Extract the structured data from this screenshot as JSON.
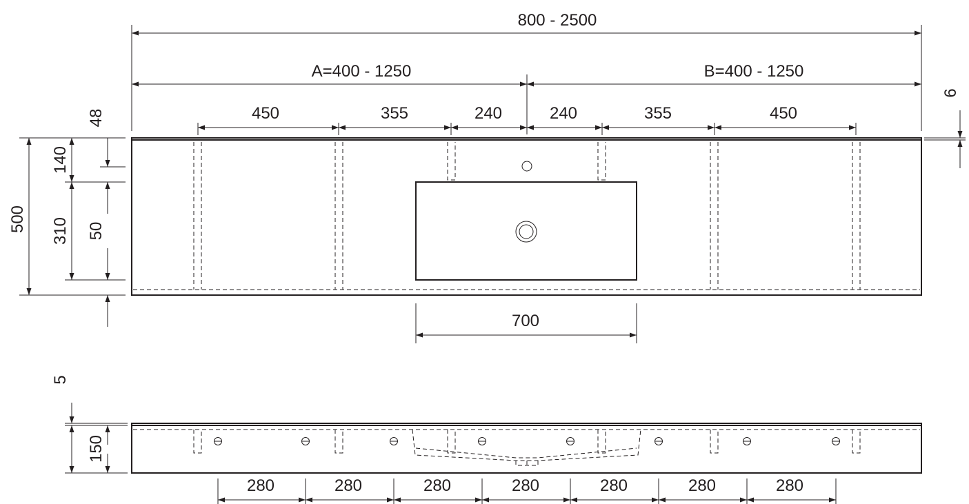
{
  "top_view": {
    "overall_width": "800 - 2500",
    "section_a": "A=400 - 1250",
    "section_b": "B=400 - 1250",
    "spacings": [
      "450",
      "355",
      "240",
      "240",
      "355",
      "450"
    ],
    "basin_width": "700",
    "depth_total": "500",
    "depth_upper": "140",
    "depth_basin": "310",
    "back_offset": "48",
    "front_offset": "50",
    "rim_thickness": "6"
  },
  "front_view": {
    "top_thickness": "5",
    "height": "150",
    "hole_spacings": [
      "280",
      "280",
      "280",
      "280",
      "280",
      "280",
      "280"
    ]
  }
}
